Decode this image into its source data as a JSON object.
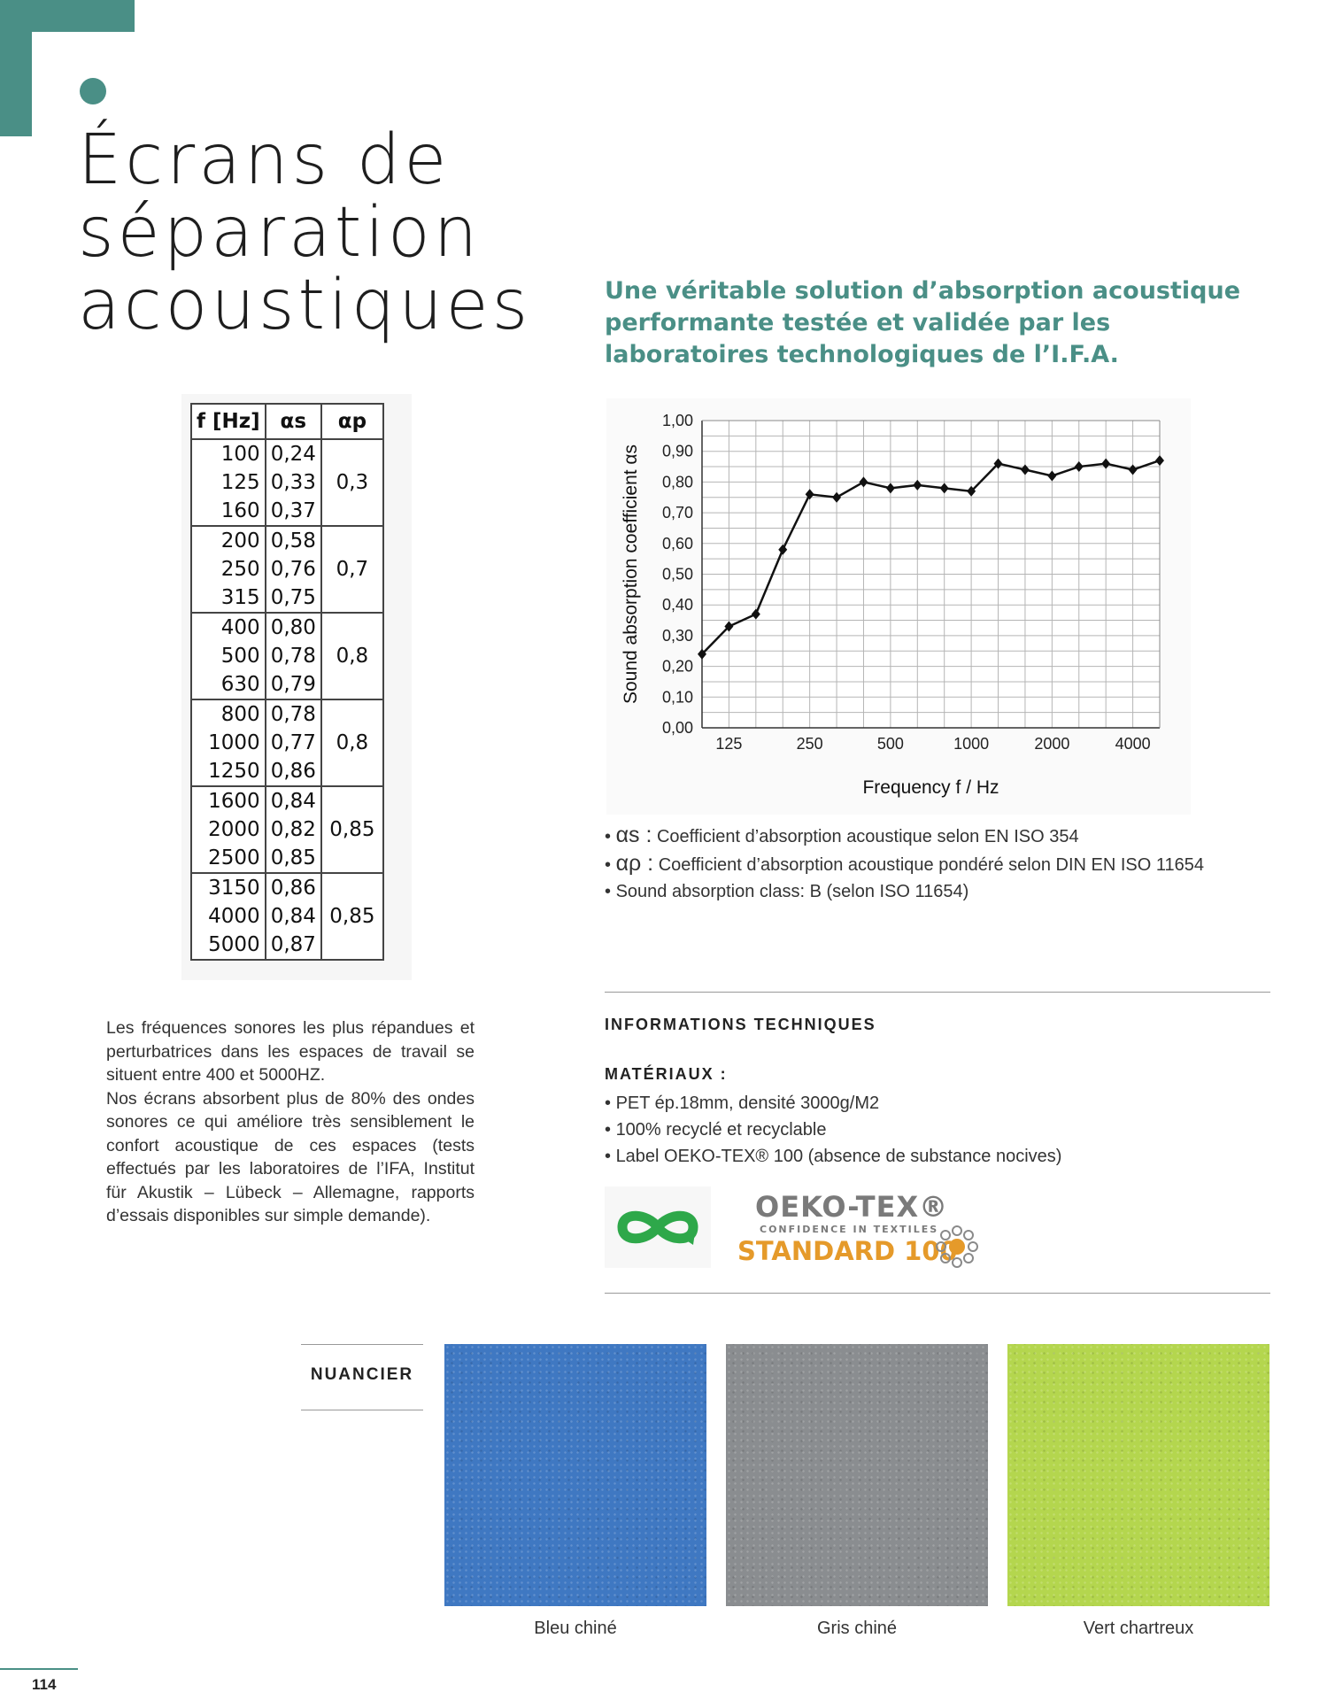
{
  "page": {
    "title_lines": [
      "Écrans de",
      "séparation",
      "acoustiques"
    ],
    "subtitle": "Une véritable solution d’absorption acoustique performante testée et validée par les laboratoires technologiques de l’I.F.A.",
    "page_number": "114",
    "accent_color": "#4a8f86"
  },
  "table": {
    "headers": [
      "f [Hz]",
      "αs",
      "αp"
    ],
    "groups": [
      {
        "rows": [
          [
            "100",
            "0,24"
          ],
          [
            "125",
            "0,33"
          ],
          [
            "160",
            "0,37"
          ]
        ],
        "ap": "0,3"
      },
      {
        "rows": [
          [
            "200",
            "0,58"
          ],
          [
            "250",
            "0,76"
          ],
          [
            "315",
            "0,75"
          ]
        ],
        "ap": "0,7"
      },
      {
        "rows": [
          [
            "400",
            "0,80"
          ],
          [
            "500",
            "0,78"
          ],
          [
            "630",
            "0,79"
          ]
        ],
        "ap": "0,8"
      },
      {
        "rows": [
          [
            "800",
            "0,78"
          ],
          [
            "1000",
            "0,77"
          ],
          [
            "1250",
            "0,86"
          ]
        ],
        "ap": "0,8"
      },
      {
        "rows": [
          [
            "1600",
            "0,84"
          ],
          [
            "2000",
            "0,82"
          ],
          [
            "2500",
            "0,85"
          ]
        ],
        "ap": "0,85"
      },
      {
        "rows": [
          [
            "3150",
            "0,86"
          ],
          [
            "4000",
            "0,84"
          ],
          [
            "5000",
            "0,87"
          ]
        ],
        "ap": "0,85"
      }
    ]
  },
  "chart_data": {
    "type": "line",
    "x": [
      "100",
      "125",
      "160",
      "200",
      "250",
      "315",
      "400",
      "500",
      "630",
      "800",
      "1000",
      "1250",
      "1600",
      "2000",
      "2500",
      "3150",
      "4000",
      "5000"
    ],
    "x_tick_labels": [
      "125",
      "250",
      "500",
      "1000",
      "2000",
      "4000"
    ],
    "y_tick_labels": [
      "0,00",
      "0,10",
      "0,20",
      "0,30",
      "0,40",
      "0,50",
      "0,60",
      "0,70",
      "0,80",
      "0,90",
      "1,00"
    ],
    "series": [
      {
        "values": [
          0.24,
          0.33,
          0.37,
          0.58,
          0.76,
          0.75,
          0.8,
          0.78,
          0.79,
          0.78,
          0.77,
          0.86,
          0.84,
          0.82,
          0.85,
          0.86,
          0.84,
          0.87
        ]
      }
    ],
    "xlabel": "Frequency f / Hz",
    "ylabel": "Sound absorption coefficient αs",
    "ylim": [
      0,
      1
    ],
    "grid": true
  },
  "legend": {
    "items": [
      {
        "symbol": "αs :",
        "text": " Coefficient d’absorption acoustique selon EN ISO 354"
      },
      {
        "symbol": "αρ :",
        "text": " Coefficient d’absorption acoustique pondéré selon DIN EN ISO 11654"
      },
      {
        "symbol": "",
        "text": "Sound absorption class: B (selon ISO 11654)"
      }
    ]
  },
  "info": {
    "heading": "INFORMATIONS TECHNIQUES",
    "materials_heading": "MATÉRIAUX :",
    "materials": [
      "PET ép.18mm, densité 3000g/M2",
      "100% recyclé et recyclable",
      "Label OEKO-TEX® 100 (absence de substance nocives)"
    ],
    "logo_oeko": "OEKO-TEX®",
    "logo_confidence": "CONFIDENCE IN TEXTILES",
    "logo_standard": "STANDARD 100",
    "recycle_icon": "infinity-recycle-icon"
  },
  "body": {
    "paragraphs": [
      "Les fréquences sonores les plus répandues et perturbatrices dans les espaces de travail se situent entre 400 et 5000HZ.",
      "Nos écrans absorbent plus de 80% des ondes sonores ce qui améliore très sensiblement le confort acoustique de ces espaces (tests effectués par les laboratoires de l’IFA, Institut für Akustik – Lübeck – Allemagne, rapports d’essais disponibles sur simple demande)."
    ]
  },
  "nuancier": {
    "label": "NUANCIER",
    "swatches": [
      {
        "name": "Bleu chiné",
        "color": "#3f78c2"
      },
      {
        "name": "Gris chiné",
        "color": "#8a8d90"
      },
      {
        "name": "Vert chartreux",
        "color": "#b4d64e"
      }
    ]
  }
}
